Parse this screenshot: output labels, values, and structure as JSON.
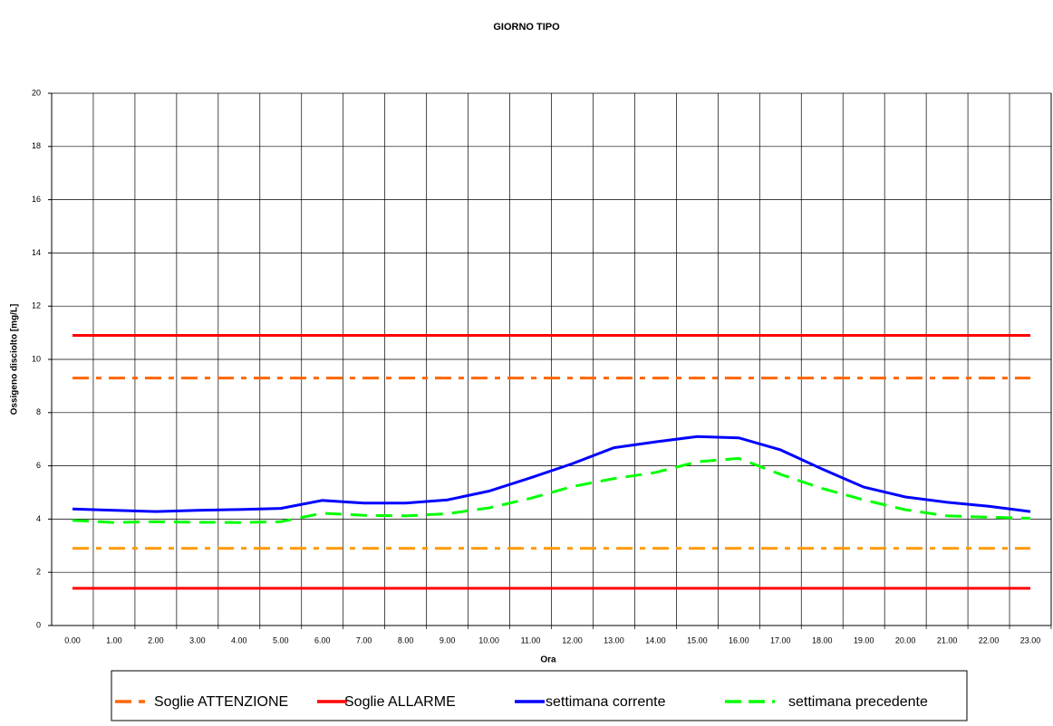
{
  "chart_data": {
    "type": "line",
    "title": "GIORNO TIPO",
    "x_label": "Ora",
    "y_label": "Ossigeno disciolto [mg/L]",
    "categories": [
      "0.00",
      "1.00",
      "2.00",
      "3.00",
      "4.00",
      "5.00",
      "6.00",
      "7.00",
      "8.00",
      "9.00",
      "10.00",
      "11.00",
      "12.00",
      "13.00",
      "14.00",
      "15.00",
      "16.00",
      "17.00",
      "18.00",
      "19.00",
      "20.00",
      "21.00",
      "22.00",
      "23.00"
    ],
    "ylim": [
      0,
      20
    ],
    "yticks": [
      0,
      2,
      4,
      6,
      8,
      10,
      12,
      14,
      16,
      18,
      20
    ],
    "grid": true,
    "series": [
      {
        "name": "Soglie ATTENZIONE",
        "color": "#ff6600",
        "dash": "dashdot",
        "values": [
          9.3,
          9.3,
          9.3,
          9.3,
          9.3,
          9.3,
          9.3,
          9.3,
          9.3,
          9.3,
          9.3,
          9.3,
          9.3,
          9.3,
          9.3,
          9.3,
          9.3,
          9.3,
          9.3,
          9.3,
          9.3,
          9.3,
          9.3,
          9.3
        ]
      },
      {
        "name": "Soglie ALLARME",
        "color": "#ff0000",
        "dash": "solid",
        "values": [
          10.9,
          10.9,
          10.9,
          10.9,
          10.9,
          10.9,
          10.9,
          10.9,
          10.9,
          10.9,
          10.9,
          10.9,
          10.9,
          10.9,
          10.9,
          10.9,
          10.9,
          10.9,
          10.9,
          10.9,
          10.9,
          10.9,
          10.9,
          10.9
        ]
      },
      {
        "name": "settimana corrente",
        "color": "#0000ff",
        "dash": "solid",
        "values": [
          4.38,
          4.33,
          4.28,
          4.33,
          4.36,
          4.4,
          4.7,
          4.6,
          4.6,
          4.72,
          5.05,
          5.55,
          6.08,
          6.68,
          6.9,
          7.1,
          7.05,
          6.6,
          5.88,
          5.2,
          4.83,
          4.63,
          4.48,
          4.28
        ]
      },
      {
        "name": "settimana precedente",
        "color": "#00ff00",
        "dash": "dash",
        "values": [
          3.95,
          3.87,
          3.9,
          3.88,
          3.87,
          3.9,
          4.22,
          4.14,
          4.12,
          4.2,
          4.42,
          4.78,
          5.22,
          5.52,
          5.75,
          6.15,
          6.28,
          5.68,
          5.15,
          4.72,
          4.35,
          4.12,
          4.07,
          4.03
        ]
      },
      {
        "color": "#ff9900",
        "dash": "dashdot",
        "values": [
          2.9,
          2.9,
          2.9,
          2.9,
          2.9,
          2.9,
          2.9,
          2.9,
          2.9,
          2.9,
          2.9,
          2.9,
          2.9,
          2.9,
          2.9,
          2.9,
          2.9,
          2.9,
          2.9,
          2.9,
          2.9,
          2.9,
          2.9,
          2.9
        ]
      },
      {
        "color": "#ff0000",
        "dash": "solid",
        "values": [
          1.4,
          1.4,
          1.4,
          1.4,
          1.4,
          1.4,
          1.4,
          1.4,
          1.4,
          1.4,
          1.4,
          1.4,
          1.4,
          1.4,
          1.4,
          1.4,
          1.4,
          1.4,
          1.4,
          1.4,
          1.4,
          1.4,
          1.4,
          1.4
        ]
      }
    ]
  }
}
